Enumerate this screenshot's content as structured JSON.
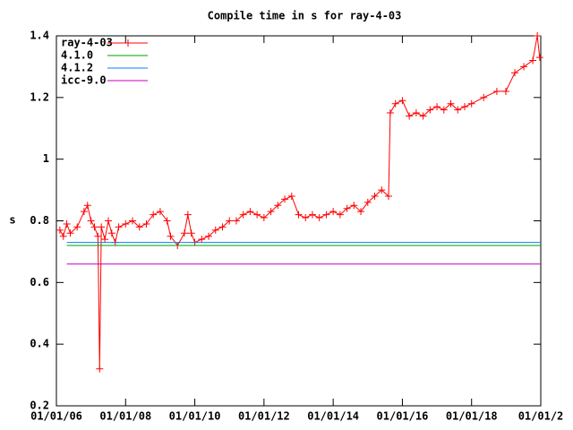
{
  "chart_data": {
    "type": "line",
    "title": "Compile time in s for ray-4-03",
    "ylabel": "s",
    "xlim": [
      2006,
      2020
    ],
    "ylim": [
      0.2,
      1.4
    ],
    "xticks": [
      {
        "value": 2006,
        "label": "01/01/06"
      },
      {
        "value": 2008,
        "label": "01/01/08"
      },
      {
        "value": 2010,
        "label": "01/01/10"
      },
      {
        "value": 2012,
        "label": "01/01/12"
      },
      {
        "value": 2014,
        "label": "01/01/14"
      },
      {
        "value": 2016,
        "label": "01/01/16"
      },
      {
        "value": 2018,
        "label": "01/01/18"
      },
      {
        "value": 2020,
        "label": "01/01/2"
      }
    ],
    "yticks": [
      0.2,
      0.4,
      0.6,
      0.8,
      1,
      1.2,
      1.4
    ],
    "legend": "top-left",
    "series": [
      {
        "name": "ray-4-03",
        "color": "#ff0000",
        "markers": true,
        "x": [
          2006.1,
          2006.2,
          2006.3,
          2006.4,
          2006.6,
          2006.8,
          2006.9,
          2007.0,
          2007.1,
          2007.2,
          2007.25,
          2007.3,
          2007.4,
          2007.5,
          2007.6,
          2007.7,
          2007.8,
          2008.0,
          2008.2,
          2008.4,
          2008.6,
          2008.8,
          2009.0,
          2009.2,
          2009.3,
          2009.5,
          2009.7,
          2009.8,
          2009.9,
          2010.0,
          2010.2,
          2010.4,
          2010.6,
          2010.8,
          2011.0,
          2011.2,
          2011.4,
          2011.6,
          2011.8,
          2012.0,
          2012.2,
          2012.4,
          2012.6,
          2012.8,
          2013.0,
          2013.2,
          2013.4,
          2013.6,
          2013.8,
          2014.0,
          2014.2,
          2014.4,
          2014.6,
          2014.8,
          2015.0,
          2015.2,
          2015.4,
          2015.6,
          2015.65,
          2015.8,
          2016.0,
          2016.2,
          2016.4,
          2016.6,
          2016.8,
          2017.0,
          2017.2,
          2017.4,
          2017.6,
          2017.8,
          2018.0,
          2018.35,
          2018.73,
          2018.99,
          2019.25,
          2019.51,
          2019.77,
          2019.9,
          2019.97
        ],
        "values": [
          0.77,
          0.75,
          0.79,
          0.76,
          0.78,
          0.83,
          0.85,
          0.8,
          0.78,
          0.75,
          0.32,
          0.78,
          0.74,
          0.8,
          0.76,
          0.73,
          0.78,
          0.79,
          0.8,
          0.78,
          0.79,
          0.82,
          0.83,
          0.8,
          0.75,
          0.72,
          0.76,
          0.82,
          0.76,
          0.73,
          0.74,
          0.75,
          0.77,
          0.78,
          0.8,
          0.8,
          0.82,
          0.83,
          0.82,
          0.81,
          0.83,
          0.85,
          0.87,
          0.88,
          0.82,
          0.81,
          0.82,
          0.81,
          0.82,
          0.83,
          0.82,
          0.84,
          0.85,
          0.83,
          0.86,
          0.88,
          0.9,
          0.88,
          1.15,
          1.18,
          1.19,
          1.14,
          1.15,
          1.14,
          1.16,
          1.17,
          1.16,
          1.18,
          1.16,
          1.17,
          1.18,
          1.2,
          1.22,
          1.22,
          1.28,
          1.3,
          1.32,
          1.4,
          1.33
        ]
      },
      {
        "name": "4.1.0",
        "color": "#00a000",
        "x": [
          2006.3,
          2020
        ],
        "values": [
          0.72,
          0.72
        ]
      },
      {
        "name": "4.1.2",
        "color": "#0080ff",
        "x": [
          2006.3,
          2020
        ],
        "values": [
          0.73,
          0.73
        ]
      },
      {
        "name": "icc-9.0",
        "color": "#c000c0",
        "x": [
          2006.3,
          2020
        ],
        "values": [
          0.66,
          0.66
        ]
      }
    ]
  }
}
